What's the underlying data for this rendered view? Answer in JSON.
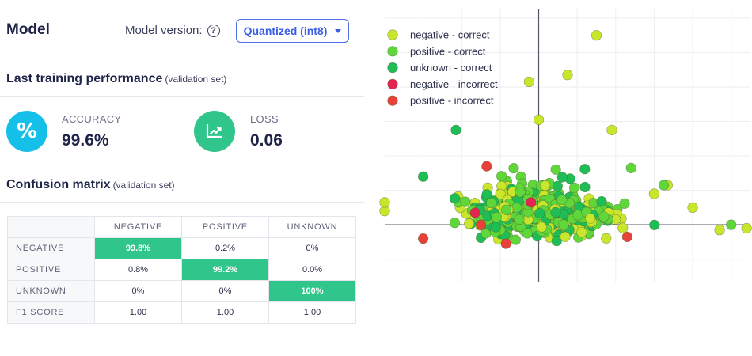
{
  "header": {
    "title": "Model",
    "version_label": "Model version:",
    "help_icon": "question-circle-icon",
    "version_value": "Quantized (int8)"
  },
  "performance": {
    "title": "Last training performance",
    "subtitle": "(validation set)",
    "accuracy": {
      "label": "ACCURACY",
      "value": "99.6%",
      "icon": "percent-icon",
      "color": "#15c0e8"
    },
    "loss": {
      "label": "LOSS",
      "value": "0.06",
      "icon": "trend-chart-icon",
      "color": "#2fc58b"
    }
  },
  "confusion": {
    "title": "Confusion matrix",
    "subtitle": "(validation set)",
    "columns": [
      "NEGATIVE",
      "POSITIVE",
      "UNKNOWN"
    ],
    "rows": [
      {
        "label": "NEGATIVE",
        "cells": [
          "99.8%",
          "0.2%",
          "0%"
        ]
      },
      {
        "label": "POSITIVE",
        "cells": [
          "0.8%",
          "99.2%",
          "0.0%"
        ]
      },
      {
        "label": "UNKNOWN",
        "cells": [
          "0%",
          "0%",
          "100%"
        ]
      },
      {
        "label": "F1 SCORE",
        "cells": [
          "1.00",
          "1.00",
          "1.00"
        ]
      }
    ],
    "highlight_color": "#2fc58b"
  },
  "chart_data": {
    "type": "scatter",
    "grid": true,
    "legend_position": "top-left",
    "series": [
      {
        "name": "negative - correct",
        "color": "#c9e52c"
      },
      {
        "name": "positive - correct",
        "color": "#5fd73a"
      },
      {
        "name": "unknown - correct",
        "color": "#1fbd55"
      },
      {
        "name": "negative - incorrect",
        "color": "#e3244f"
      },
      {
        "name": "positive - incorrect",
        "color": "#e8413a"
      }
    ],
    "xlim": [
      -8,
      11
    ],
    "ylim": [
      -3.3,
      12.5
    ],
    "highlight_points": [
      {
        "series": 0,
        "x": 3.0,
        "y": 11.0
      },
      {
        "series": 0,
        "x": 1.5,
        "y": 8.7
      },
      {
        "series": 0,
        "x": -0.5,
        "y": 8.3
      },
      {
        "series": 0,
        "x": 0.0,
        "y": 6.1
      },
      {
        "series": 0,
        "x": 3.8,
        "y": 5.5
      },
      {
        "series": 2,
        "x": -4.3,
        "y": 5.5
      },
      {
        "series": 4,
        "x": -2.7,
        "y": 3.4
      },
      {
        "series": 2,
        "x": -6.0,
        "y": 2.8
      },
      {
        "series": 3,
        "x": -3.3,
        "y": 0.7
      },
      {
        "series": 4,
        "x": -3.0,
        "y": 0.0
      },
      {
        "series": 3,
        "x": -0.4,
        "y": 1.3
      },
      {
        "series": 4,
        "x": -6.0,
        "y": -0.8
      },
      {
        "series": 4,
        "x": -1.7,
        "y": -1.1
      },
      {
        "series": 4,
        "x": 4.6,
        "y": -0.7
      },
      {
        "series": 0,
        "x": -8.0,
        "y": 0.8
      },
      {
        "series": 0,
        "x": -8.0,
        "y": 1.3
      },
      {
        "series": 0,
        "x": 10.8,
        "y": -0.2
      },
      {
        "series": 0,
        "x": 8.0,
        "y": 1.0
      },
      {
        "series": 0,
        "x": 6.0,
        "y": 1.8
      },
      {
        "series": 0,
        "x": 6.7,
        "y": 2.3
      },
      {
        "series": 1,
        "x": 4.8,
        "y": 3.3
      },
      {
        "series": 1,
        "x": 6.5,
        "y": 2.3
      },
      {
        "series": 1,
        "x": 10.0,
        "y": 0.0
      },
      {
        "series": 0,
        "x": 9.4,
        "y": -0.3
      }
    ]
  }
}
